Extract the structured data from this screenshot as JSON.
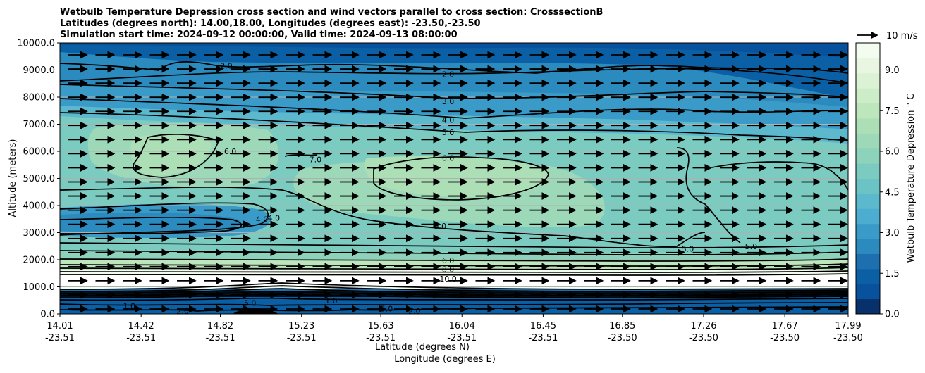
{
  "chart_data": {
    "type": "heatmap",
    "title_lines": [
      "Wetbulb Temperature Depression cross section and wind vectors parallel to cross section: CrosssectionB",
      "Latitudes (degrees north): 14.00,18.00, Longitudes (degrees east): -23.50,-23.50",
      "Simulation start time: 2024-09-12 00:00:00, Valid time: 2024-09-13 08:00:00"
    ],
    "ylabel": "Altitude (meters)",
    "xlabel_lat": "Latitude (degrees N)",
    "xlabel_lon": "Longitude (degrees E)",
    "y_ticks": [
      "0.0",
      "1000.0",
      "2000.0",
      "3000.0",
      "4000.0",
      "5000.0",
      "6000.0",
      "7000.0",
      "8000.0",
      "9000.0",
      "10000.0"
    ],
    "y_tick_values": [
      0,
      1000,
      2000,
      3000,
      4000,
      5000,
      6000,
      7000,
      8000,
      9000,
      10000
    ],
    "ylim": [
      0,
      10000
    ],
    "x_ticks": [
      {
        "lat": "14.01",
        "lon": "-23.51",
        "v": 14.01
      },
      {
        "lat": "14.42",
        "lon": "-23.51",
        "v": 14.42
      },
      {
        "lat": "14.82",
        "lon": "-23.51",
        "v": 14.82
      },
      {
        "lat": "15.23",
        "lon": "-23.51",
        "v": 15.23
      },
      {
        "lat": "15.63",
        "lon": "-23.51",
        "v": 15.63
      },
      {
        "lat": "16.04",
        "lon": "-23.51",
        "v": 16.04
      },
      {
        "lat": "16.45",
        "lon": "-23.51",
        "v": 16.45
      },
      {
        "lat": "16.85",
        "lon": "-23.50",
        "v": 16.85
      },
      {
        "lat": "17.26",
        "lon": "-23.50",
        "v": 17.26
      },
      {
        "lat": "17.67",
        "lon": "-23.50",
        "v": 17.67
      },
      {
        "lat": "17.99",
        "lon": "-23.50",
        "v": 17.99
      }
    ],
    "xlim": [
      14.01,
      17.99
    ],
    "grid": "horizontal",
    "colorbar": {
      "label": "Wetbulb Temperature Depression ° C",
      "ticks": [
        "0.0",
        "1.5",
        "3.0",
        "4.5",
        "6.0",
        "7.5",
        "9.0"
      ],
      "tick_values": [
        0,
        1.5,
        3.0,
        4.5,
        6.0,
        7.5,
        9.0
      ],
      "range": [
        0,
        10
      ],
      "colors": [
        "#08306b",
        "#08519c",
        "#0b5fa5",
        "#1e6fb0",
        "#2b8bbf",
        "#3a9bc8",
        "#4cadd0",
        "#5cb8cc",
        "#6bc3c6",
        "#7ccbc0",
        "#8dd3bb",
        "#9dd9b8",
        "#acdfb5",
        "#bde6bd",
        "#cdecc8",
        "#dcf2d4",
        "#e8f6e2",
        "#f4fbef"
      ]
    },
    "quiver_key": {
      "label": "10 m/s"
    },
    "contour_labels": [
      {
        "text": "2.0",
        "x": 15.97,
        "y": 8850
      },
      {
        "text": "2.0",
        "x": 14.85,
        "y": 9150
      },
      {
        "text": "3.0",
        "x": 15.97,
        "y": 7850
      },
      {
        "text": "4.0",
        "x": 15.97,
        "y": 7150
      },
      {
        "text": "5.0",
        "x": 15.97,
        "y": 6700
      },
      {
        "text": "6.0",
        "x": 14.87,
        "y": 6000
      },
      {
        "text": "6.0",
        "x": 15.97,
        "y": 5750
      },
      {
        "text": "7.0",
        "x": 15.3,
        "y": 5700
      },
      {
        "text": "4.0",
        "x": 15.03,
        "y": 3500
      },
      {
        "text": "4.0",
        "x": 15.09,
        "y": 3550
      },
      {
        "text": "5.0",
        "x": 15.93,
        "y": 3250
      },
      {
        "text": "5.0",
        "x": 17.18,
        "y": 2400
      },
      {
        "text": "5.0",
        "x": 17.5,
        "y": 2500
      },
      {
        "text": "6.0",
        "x": 15.97,
        "y": 1980
      },
      {
        "text": "8.0",
        "x": 15.97,
        "y": 1650
      },
      {
        "text": "10.0",
        "x": 15.97,
        "y": 1300
      },
      {
        "text": "1.0",
        "x": 14.36,
        "y": 300
      },
      {
        "text": "2.0",
        "x": 14.63,
        "y": 100
      },
      {
        "text": "5.0",
        "x": 14.97,
        "y": 400
      },
      {
        "text": "1.0",
        "x": 15.38,
        "y": 500
      },
      {
        "text": "5.0",
        "x": 15.66,
        "y": 200
      },
      {
        "text": "2.0",
        "x": 15.8,
        "y": 100
      }
    ]
  }
}
